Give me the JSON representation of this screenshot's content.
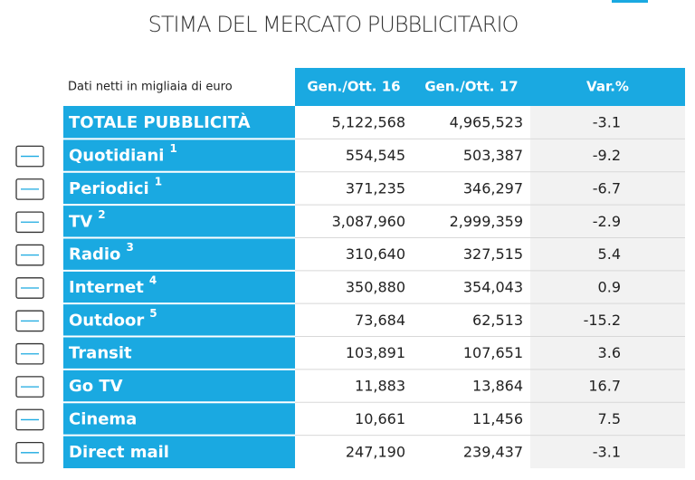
{
  "title": "STIMA DEL MERCATO PUBBLICITARIO",
  "table": {
    "header": [
      "Dati netti in migliaia di euro",
      "Gen./Ott. 16",
      "Gen./Ott. 17",
      "Var.%"
    ],
    "rows": [
      {
        "name": "TOTALE PUBBLICITÀ",
        "cells": [
          "5,122,568",
          "4,965,523",
          "-3.1"
        ]
      },
      {
        "name": "Quotidiani",
        "note": "1",
        "cells": [
          "554,545",
          "503,387",
          "-9.2"
        ]
      },
      {
        "name": "Periodici",
        "note": "1",
        "cells": [
          "371,235",
          "346,297",
          "-6.7"
        ]
      },
      {
        "name": "TV",
        "note": "2",
        "cells": [
          "3,087,960",
          "2,999,359",
          "-2.9"
        ]
      },
      {
        "name": "Radio",
        "note": "3",
        "cells": [
          "310,640",
          "327,515",
          "5.4"
        ]
      },
      {
        "name": "Internet",
        "note": "4",
        "cells": [
          "350,880",
          "354,043",
          "0.9"
        ]
      },
      {
        "name": "Outdoor",
        "note": "5",
        "cells": [
          "73,684",
          "62,513",
          "-15.2"
        ]
      },
      {
        "name": "Transit",
        "cells": [
          "103,891",
          "107,651",
          "3.6"
        ]
      },
      {
        "name": "Go TV",
        "cells": [
          "11,883",
          "13,864",
          "16.7"
        ]
      },
      {
        "name": "Cinema",
        "cells": [
          "10,661",
          "11,456",
          "7.5"
        ]
      },
      {
        "name": "Direct mail",
        "cells": [
          "247,190",
          "239,437",
          "-3.1"
        ]
      }
    ]
  }
}
